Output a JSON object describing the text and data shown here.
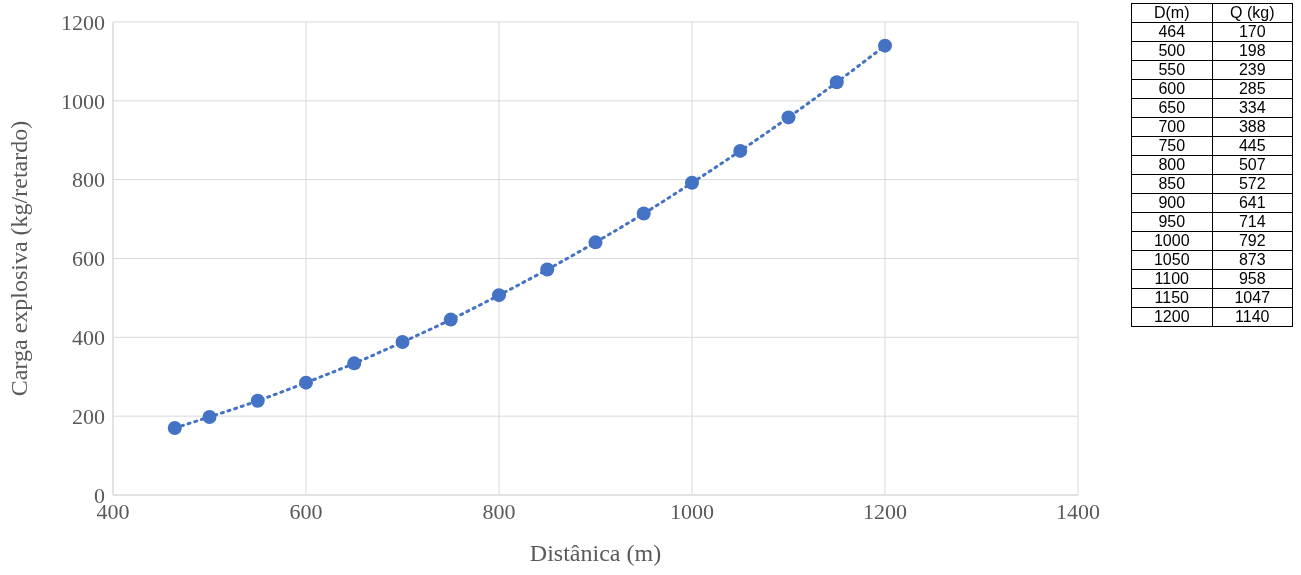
{
  "chart_data": [
    {
      "type": "scatter",
      "xlabel": "Distânica (m)",
      "ylabel": "Carga explosiva (kg/retardo)",
      "x": [
        464,
        500,
        550,
        600,
        650,
        700,
        750,
        800,
        850,
        900,
        950,
        1000,
        1050,
        1100,
        1150,
        1200
      ],
      "series": [
        {
          "type": "scatter",
          "color": "#4472c4",
          "values": [
            170,
            198,
            239,
            285,
            334,
            388,
            445,
            507,
            572,
            641,
            714,
            792,
            873,
            958,
            1047,
            1140
          ]
        },
        {
          "type": "line",
          "color": "#4472c4",
          "line_style": "dotted",
          "marker": "none",
          "values": [
            170,
            198,
            239,
            285,
            334,
            388,
            445,
            507,
            572,
            641,
            714,
            792,
            873,
            958,
            1047,
            1140
          ]
        }
      ],
      "xlim": [
        400,
        1400
      ],
      "xticks": [
        400,
        600,
        800,
        1000,
        1200,
        1400
      ],
      "ylim": [
        0,
        1200
      ],
      "yticks": [
        0,
        200,
        400,
        600,
        800,
        1000,
        1200
      ],
      "grid": true,
      "marker": "circle"
    },
    {
      "type": "other",
      "annotations": [
        "D(m)",
        "Q (kg)",
        "464",
        "170",
        "500",
        "198",
        "550",
        "239",
        "600",
        "285",
        "650",
        "334",
        "700",
        "388",
        "750",
        "445",
        "800",
        "507",
        "850",
        "572",
        "900",
        "641",
        "950",
        "714",
        "1000",
        "792",
        "1050",
        "873",
        "1100",
        "958",
        "1150",
        "1047",
        "1200",
        "1140"
      ]
    }
  ]
}
